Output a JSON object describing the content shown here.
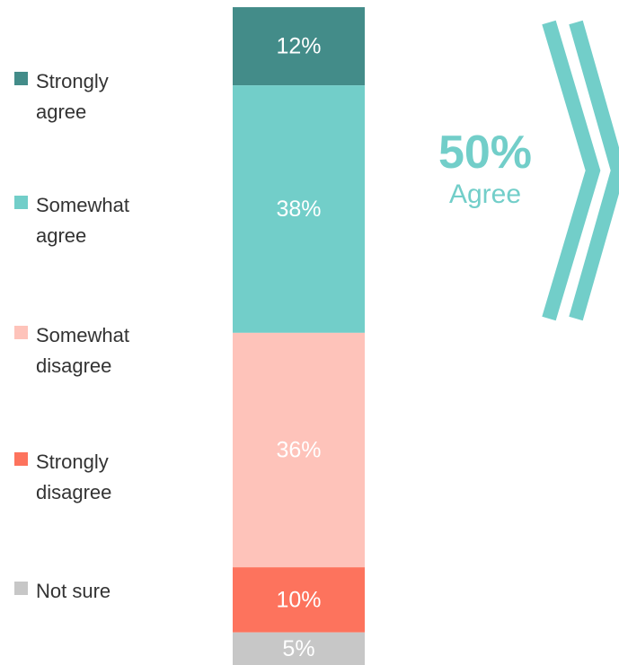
{
  "chart_data": {
    "type": "bar",
    "orientation": "vertical",
    "stacked": true,
    "unit": "%",
    "series": [
      {
        "name": "Strongly agree",
        "value": 12,
        "label": "12%",
        "color": "#438c89",
        "label_color": "#ffffff"
      },
      {
        "name": "Somewhat agree",
        "value": 38,
        "label": "38%",
        "color": "#72cec9",
        "label_color": "#ffffff"
      },
      {
        "name": "Somewhat disagree",
        "value": 36,
        "label": "36%",
        "color": "#fec3ba",
        "label_color": "#ffffff"
      },
      {
        "name": "Strongly disagree",
        "value": 10,
        "label": "10%",
        "color": "#fd735d",
        "label_color": "#ffffff"
      },
      {
        "name": "Not sure",
        "value": 5,
        "label": "5%",
        "color": "#c7c7c7",
        "label_color": "#ffffff"
      }
    ],
    "legend": {
      "position": "left",
      "items": [
        {
          "text": "Strongly agree",
          "color": "#438c89"
        },
        {
          "text": "Somewhat agree",
          "color": "#72cec9"
        },
        {
          "text": "Somewhat disagree",
          "color": "#fec3ba"
        },
        {
          "text": "Strongly disagree",
          "color": "#fd735d"
        },
        {
          "text": "Not sure",
          "color": "#c7c7c7"
        }
      ]
    },
    "callout": {
      "value": "50%",
      "label": "Agree",
      "color": "#72cec9"
    },
    "grid": false,
    "axes": false
  }
}
